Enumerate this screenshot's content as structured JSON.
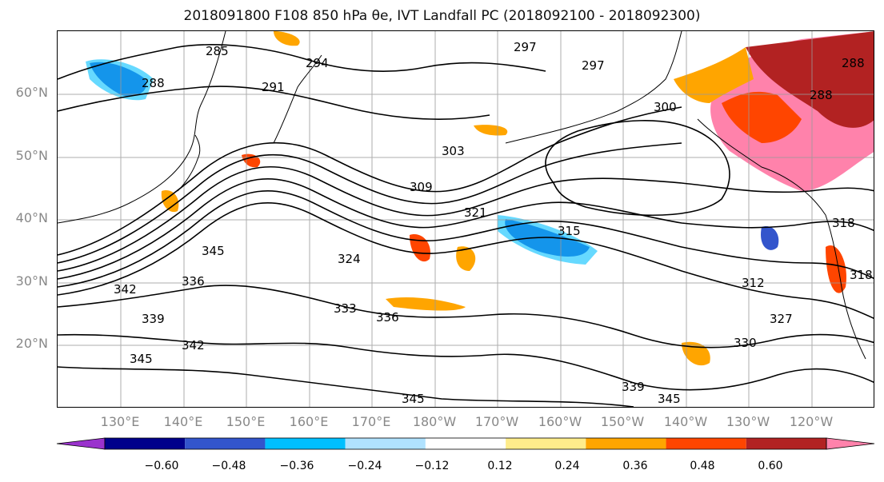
{
  "title": "2018091800 F108 850 hPa θe, IVT Landfall PC (2018092100 - 2018092300)",
  "lat_labels": [
    "60°N",
    "50°N",
    "40°N",
    "30°N",
    "20°N"
  ],
  "lon_labels": [
    "130°E",
    "140°E",
    "150°E",
    "160°E",
    "170°E",
    "180°W",
    "170°W",
    "160°W",
    "150°W",
    "140°W",
    "130°W",
    "120°W"
  ],
  "contour_labels": [
    "285",
    "294",
    "297",
    "297",
    "291",
    "288",
    "300",
    "303",
    "309",
    "321",
    "315",
    "324",
    "345",
    "342",
    "336",
    "333",
    "336",
    "339",
    "342",
    "345",
    "312",
    "327",
    "330",
    "339",
    "345",
    "345",
    "288",
    "288",
    "318",
    "318"
  ],
  "colorbar": {
    "ticks": [
      "−0.60",
      "−0.48",
      "−0.36",
      "−0.24",
      "−0.12",
      "0.12",
      "0.24",
      "0.36",
      "0.48",
      "0.60"
    ],
    "colors": [
      "#9a32cd",
      "#00008b",
      "#3355cc",
      "#00bfff",
      "#b0e2ff",
      "#ffffff",
      "#ffec8b",
      "#ffa500",
      "#ff4500",
      "#b22222",
      "#ff82ab"
    ]
  }
}
